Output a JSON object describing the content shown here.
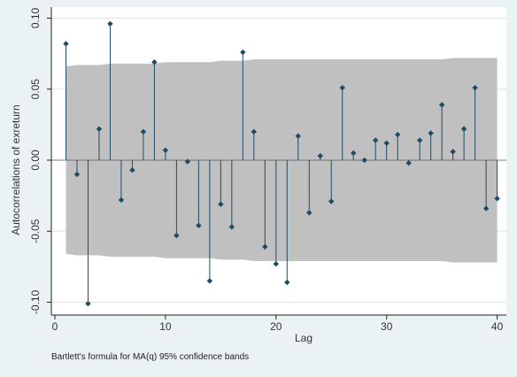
{
  "chart_data": {
    "type": "scatter",
    "subtype": "correlogram",
    "title": "",
    "xlabel": "Lag",
    "ylabel": "Autocorrelations of exreturn",
    "note": "Bartlett's formula for MA(q) 95% confidence bands",
    "xlim": [
      0,
      40
    ],
    "ylim": [
      -0.1,
      0.1
    ],
    "xticks": [
      "0",
      "10",
      "20",
      "30",
      "40"
    ],
    "yticks": [
      "-0.10",
      "-0.05",
      "0.00",
      "0.05",
      "0.10"
    ],
    "grid": true,
    "legend": "none",
    "colors": {
      "background": "#eaf2f3",
      "plot_area": "#ffffff",
      "band": "#c0c0c0",
      "marker": "#1e4b66",
      "grid": "#dde3ea"
    },
    "x": [
      1,
      2,
      3,
      4,
      5,
      6,
      7,
      8,
      9,
      10,
      11,
      12,
      13,
      14,
      15,
      16,
      17,
      18,
      19,
      20,
      21,
      22,
      23,
      24,
      25,
      26,
      27,
      28,
      29,
      30,
      31,
      32,
      33,
      34,
      35,
      36,
      37,
      38,
      39,
      40
    ],
    "values": [
      0.082,
      -0.01,
      -0.101,
      0.022,
      0.096,
      -0.028,
      -0.007,
      0.02,
      0.069,
      0.007,
      -0.053,
      -0.001,
      -0.046,
      -0.085,
      -0.031,
      -0.047,
      0.076,
      0.02,
      -0.061,
      -0.073,
      -0.086,
      0.017,
      -0.037,
      0.003,
      -0.029,
      0.051,
      0.005,
      0.0,
      0.014,
      0.012,
      0.018,
      -0.002,
      0.014,
      0.019,
      0.039,
      0.006,
      0.022,
      0.051,
      -0.034,
      -0.027
    ],
    "band_upper": [
      0.066,
      0.067,
      0.067,
      0.067,
      0.068,
      0.068,
      0.068,
      0.068,
      0.068,
      0.069,
      0.069,
      0.069,
      0.069,
      0.069,
      0.07,
      0.07,
      0.07,
      0.071,
      0.071,
      0.071,
      0.071,
      0.071,
      0.071,
      0.071,
      0.071,
      0.071,
      0.071,
      0.071,
      0.071,
      0.071,
      0.071,
      0.071,
      0.071,
      0.071,
      0.071,
      0.072,
      0.072,
      0.072,
      0.072,
      0.072
    ]
  }
}
